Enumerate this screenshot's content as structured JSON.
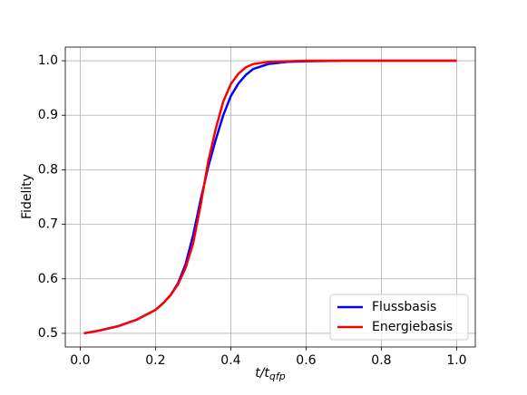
{
  "chart_data": {
    "type": "line",
    "xlabel_main": "t/t",
    "xlabel_sub": "qfp",
    "ylabel": "Fidelity",
    "x": [
      0.01,
      0.05,
      0.1,
      0.15,
      0.2,
      0.22,
      0.24,
      0.26,
      0.28,
      0.3,
      0.32,
      0.34,
      0.36,
      0.38,
      0.4,
      0.42,
      0.44,
      0.46,
      0.5,
      0.55,
      0.6,
      0.7,
      0.8,
      0.9,
      1.0
    ],
    "series": [
      {
        "name": "Flussbasis",
        "color": "#0000ff",
        "values": [
          0.5,
          0.505,
          0.513,
          0.525,
          0.543,
          0.555,
          0.57,
          0.592,
          0.627,
          0.68,
          0.745,
          0.805,
          0.855,
          0.9,
          0.935,
          0.958,
          0.974,
          0.985,
          0.994,
          0.998,
          0.999,
          1.0,
          1.0,
          1.0,
          1.0
        ]
      },
      {
        "name": "Energiebasis",
        "color": "#ff0000",
        "values": [
          0.5,
          0.505,
          0.513,
          0.525,
          0.543,
          0.555,
          0.57,
          0.59,
          0.62,
          0.665,
          0.735,
          0.815,
          0.875,
          0.925,
          0.957,
          0.976,
          0.988,
          0.994,
          0.998,
          0.999,
          1.0,
          1.0,
          1.0,
          1.0,
          1.0
        ]
      }
    ],
    "xlim": [
      -0.0395,
      1.0495
    ],
    "ylim": [
      0.475,
      1.025
    ],
    "xticks": [
      {
        "value": 0,
        "label": "0.0"
      },
      0.2,
      0.4,
      0.6,
      0.8,
      {
        "value": 1,
        "label": "1.0"
      }
    ],
    "yticks": [
      0.5,
      0.6,
      0.7,
      0.8,
      0.9,
      {
        "value": 1,
        "label": "1.0"
      }
    ],
    "grid": true,
    "legend": "lower right"
  }
}
